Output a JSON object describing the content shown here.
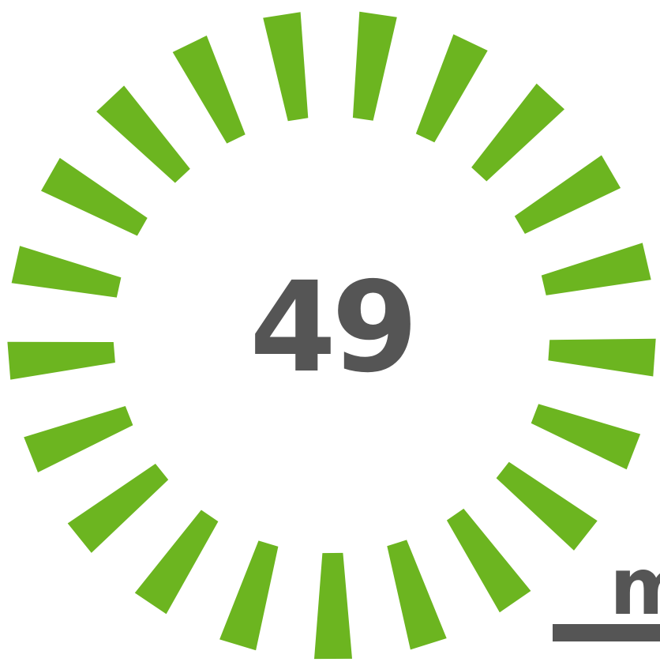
{
  "counter": {
    "value": "49",
    "unit": "m"
  },
  "rays": {
    "count": 21,
    "color": "#6cb520",
    "icon": "sunburst-rays-icon"
  },
  "colors": {
    "text": "#555555",
    "background": "#ffffff"
  }
}
